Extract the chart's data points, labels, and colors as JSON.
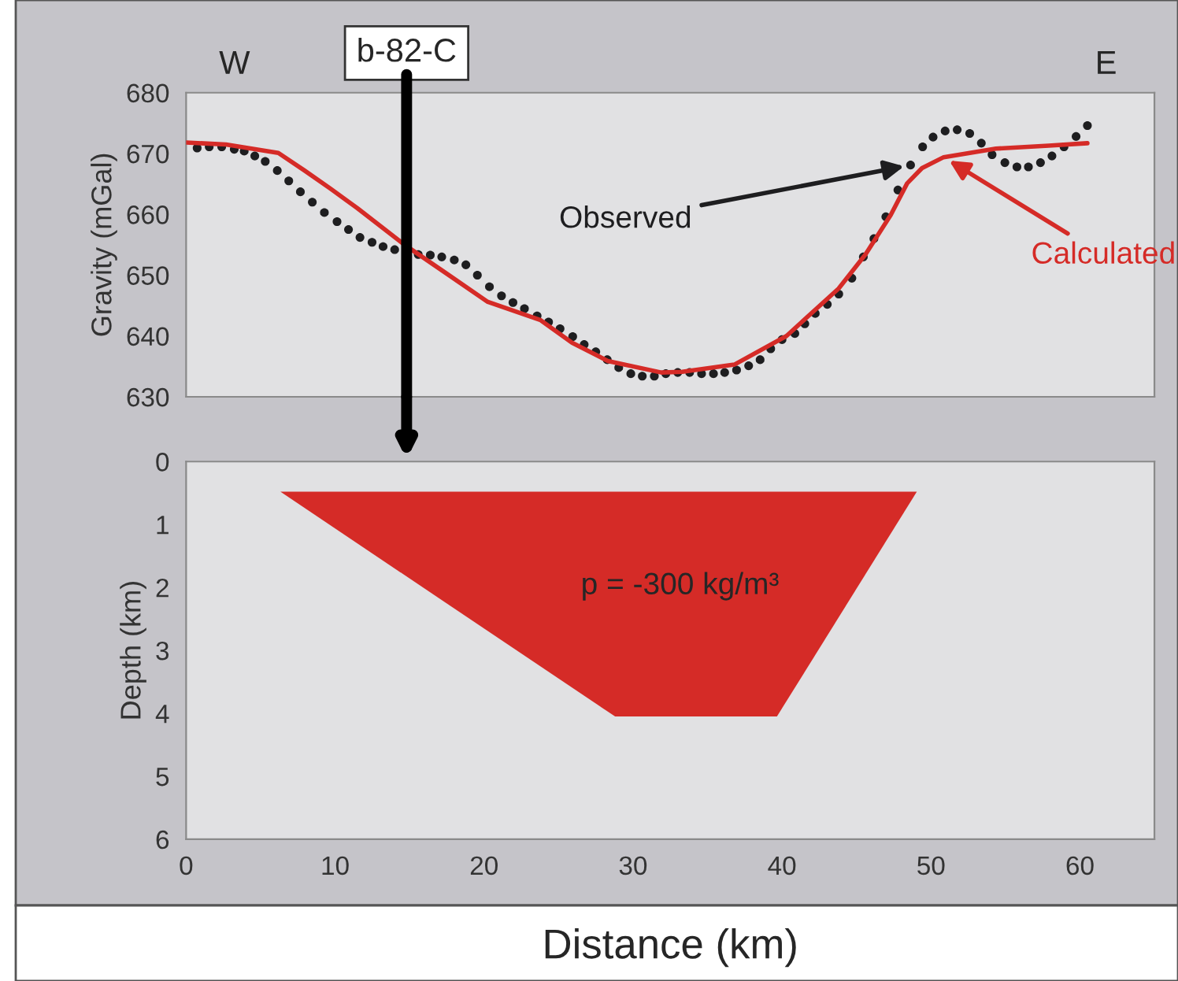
{
  "chart_data": [
    {
      "type": "scatter",
      "ylabel": "Gravity (mGal)",
      "xlim": [
        0,
        65
      ],
      "ylim": [
        630,
        680
      ],
      "yticks": [
        630,
        640,
        650,
        660,
        670,
        680
      ],
      "tick_labels": "y",
      "annotations": [
        "W",
        "E"
      ],
      "ref_lines": [
        {
          "axis": "x",
          "value": 14.8,
          "label": "b-82-C",
          "color": "#000000"
        }
      ],
      "series": [
        {
          "name": "Observed",
          "color": "#1e1e20",
          "marker": "circle",
          "x": [
            0.74,
            1.55,
            2.39,
            3.23,
            3.9,
            4.61,
            5.31,
            6.12,
            6.89,
            7.67,
            8.47,
            9.28,
            10.13,
            10.9,
            11.67,
            12.48,
            13.22,
            14.0,
            15.58,
            16.39,
            17.16,
            18.0,
            18.78,
            19.55,
            20.36,
            21.17,
            21.94,
            22.71,
            23.56,
            24.33,
            25.1,
            25.95,
            26.72,
            27.5,
            28.27,
            29.04,
            29.85,
            30.62,
            31.43,
            32.2,
            33.0,
            33.8,
            34.6,
            35.4,
            36.15,
            36.95,
            37.76,
            38.53,
            39.24,
            40.0,
            40.86,
            41.53,
            42.23,
            43.04,
            43.81,
            44.69,
            45.46,
            46.17,
            46.97,
            47.78,
            48.63,
            49.44,
            50.14,
            50.95,
            51.76,
            52.6,
            53.38,
            54.1,
            54.96,
            55.77,
            56.54,
            57.35,
            58.12,
            58.93,
            59.74,
            60.5
          ],
          "values": [
            670.9,
            671.1,
            671.1,
            670.7,
            670.4,
            669.6,
            668.7,
            667.2,
            665.5,
            663.7,
            662.0,
            660.3,
            658.8,
            657.5,
            656.2,
            655.4,
            654.7,
            654.2,
            653.4,
            653.3,
            653.0,
            652.5,
            651.7,
            650.0,
            648.1,
            646.6,
            645.5,
            644.5,
            643.3,
            642.3,
            641.2,
            639.9,
            638.6,
            637.4,
            636.1,
            634.8,
            633.8,
            633.4,
            633.4,
            633.8,
            634.0,
            634.0,
            633.8,
            633.8,
            634.0,
            634.4,
            635.1,
            636.1,
            637.9,
            639.4,
            640.4,
            642.0,
            643.7,
            645.2,
            646.9,
            649.5,
            653.0,
            656.0,
            659.6,
            664.0,
            668.1,
            671.1,
            672.7,
            673.7,
            673.9,
            673.3,
            671.7,
            669.8,
            668.5,
            667.8,
            667.8,
            668.5,
            669.6,
            671.1,
            672.8,
            674.6
          ]
        },
        {
          "name": "Calculated",
          "type": "line",
          "color": "#d52b27",
          "x": [
            0.0,
            2.67,
            6.19,
            7.95,
            9.7,
            11.5,
            14.6,
            17.4,
            20.25,
            23.8,
            25.9,
            28.3,
            31.9,
            33.3,
            36.8,
            40.3,
            43.8,
            45.6,
            47.3,
            48.4,
            49.4,
            50.85,
            54.36,
            57.9,
            60.5
          ],
          "values": [
            671.8,
            671.5,
            670.1,
            667.2,
            664.2,
            661.0,
            655.1,
            650.4,
            645.6,
            642.6,
            638.9,
            635.9,
            634.0,
            634.1,
            635.3,
            640.0,
            647.8,
            653.4,
            659.9,
            665.1,
            667.6,
            669.4,
            670.8,
            671.3,
            671.7
          ]
        }
      ]
    },
    {
      "type": "area",
      "xlabel": "Distance (km)",
      "ylabel": "Depth (km)",
      "xlim": [
        0,
        65
      ],
      "ylim": [
        6,
        0
      ],
      "xticks": [
        0,
        10,
        20,
        30,
        40,
        50,
        60
      ],
      "yticks": [
        0,
        1,
        2,
        3,
        4,
        5,
        6
      ],
      "annotations": [
        "p = -300 kg/m³"
      ],
      "series": [
        {
          "color": "#d52b27",
          "x": [
            6.33,
            28.8,
            39.66,
            49.05,
            6.33
          ],
          "values": [
            0.48,
            4.05,
            4.05,
            0.48,
            0.48
          ]
        }
      ]
    }
  ]
}
